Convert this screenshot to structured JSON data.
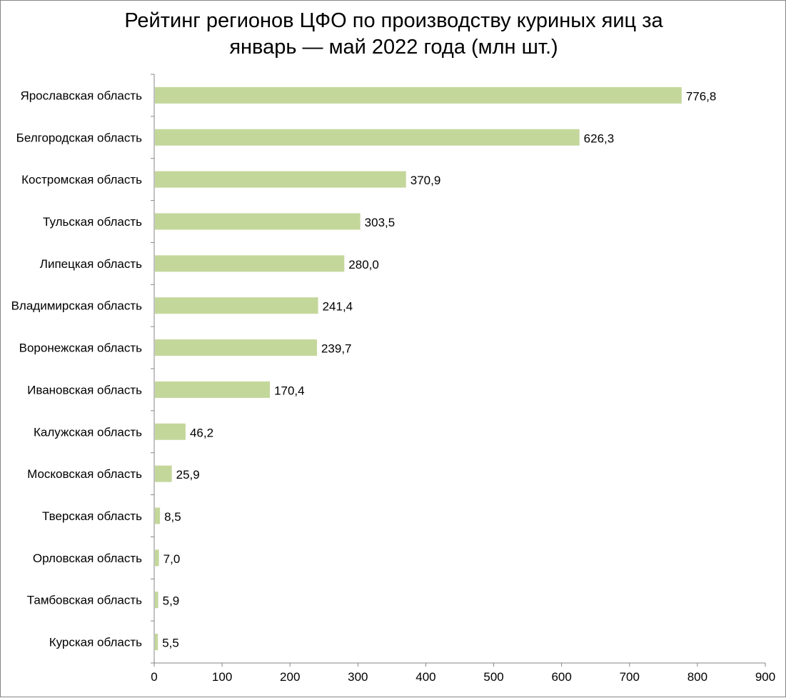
{
  "chart_data": {
    "type": "bar",
    "orientation": "horizontal",
    "title_lines": [
      "Рейтинг регионов ЦФО по производству куриных яиц за",
      "январь — май 2022 года (млн шт.)"
    ],
    "categories": [
      "Ярославская область",
      "Белгородская область",
      "Костромская область",
      "Тульская область",
      "Липецкая область",
      "Владимирская область",
      "Воронежская область",
      "Ивановская область",
      "Калужская область",
      "Московская область",
      "Тверская область",
      "Орловская область",
      "Тамбовская область",
      "Курская область"
    ],
    "values": [
      776.8,
      626.3,
      370.9,
      303.5,
      280.0,
      241.4,
      239.7,
      170.4,
      46.2,
      25.9,
      8.5,
      7.0,
      5.9,
      5.5
    ],
    "value_labels": [
      "776,8",
      "626,3",
      "370,9",
      "303,5",
      "280,0",
      "241,4",
      "239,7",
      "170,4",
      "46,2",
      "25,9",
      "8,5",
      "7,0",
      "5,9",
      "5,5"
    ],
    "xlim": [
      0,
      900
    ],
    "x_ticks": [
      "0",
      "100",
      "200",
      "300",
      "400",
      "500",
      "600",
      "700",
      "800",
      "900"
    ],
    "grid": false,
    "legend": "none",
    "bar_color": "#c4d79b"
  }
}
